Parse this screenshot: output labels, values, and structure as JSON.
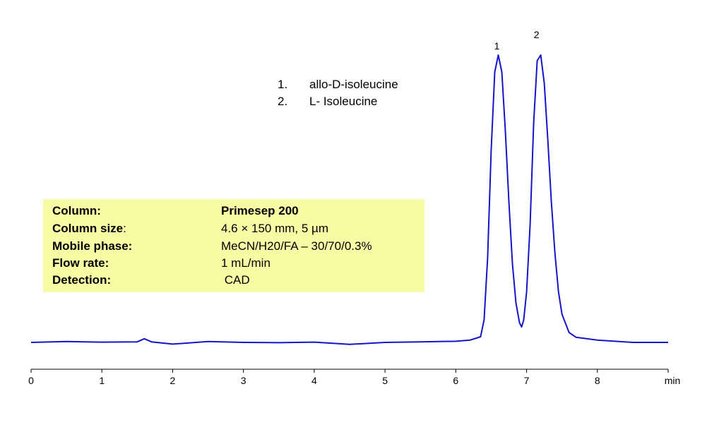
{
  "chart_data": {
    "type": "line",
    "xlim": [
      0,
      9
    ],
    "x_ticks": [
      0,
      1,
      2,
      3,
      4,
      5,
      6,
      7,
      8
    ],
    "x_unit": "min",
    "series": [
      {
        "color": "#1515c8",
        "x": [
          0,
          0.5,
          1,
          1.5,
          1.6,
          1.7,
          2,
          2.5,
          3,
          3.5,
          4,
          4.5,
          5,
          5.5,
          6,
          6.2,
          6.35,
          6.4,
          6.45,
          6.5,
          6.55,
          6.6,
          6.65,
          6.7,
          6.75,
          6.8,
          6.85,
          6.9,
          6.93,
          6.96,
          7.0,
          7.05,
          7.1,
          7.15,
          7.2,
          7.25,
          7.3,
          7.35,
          7.4,
          7.45,
          7.5,
          7.6,
          7.7,
          8,
          8.5,
          9
        ],
        "y": [
          0.0,
          0.3,
          0.1,
          0.2,
          1.3,
          0.2,
          -0.6,
          0.3,
          0.0,
          -0.1,
          0.1,
          -0.7,
          0.0,
          0.2,
          0.4,
          0.8,
          2.0,
          8.0,
          30.0,
          68.0,
          96.0,
          102.0,
          96.0,
          75.0,
          50.0,
          28.0,
          14.0,
          7.0,
          5.5,
          8.0,
          18.0,
          42.0,
          78.0,
          100.0,
          102.0,
          92.0,
          72.0,
          50.0,
          32.0,
          18.0,
          10.0,
          3.5,
          1.8,
          0.8,
          0.0,
          0.0
        ]
      }
    ],
    "peaks": [
      {
        "label": "1",
        "x": 6.58,
        "y": 102.0
      },
      {
        "label": "2",
        "x": 7.14,
        "y": 106.0
      }
    ]
  },
  "legend": [
    {
      "num": "1.",
      "name": "allo-D-isoleucine"
    },
    {
      "num": "2.",
      "name": "L- Isoleucine"
    }
  ],
  "conditions": [
    {
      "key": "Column:",
      "value": "Primesep 200",
      "value_bold": true
    },
    {
      "key": "Column size",
      "key_suffix": ":",
      "value": "4.6 × 150 mm, 5 µm",
      "value_bold": false
    },
    {
      "key": "Mobile phase:",
      "value": "MeCN/H20/FA – 30/70/0.3%",
      "value_bold": false
    },
    {
      "key": "Flow rate:",
      "value": "1 mL/min",
      "value_bold": false
    },
    {
      "key": "Detection:",
      "value": " CAD",
      "value_bold": false
    }
  ]
}
